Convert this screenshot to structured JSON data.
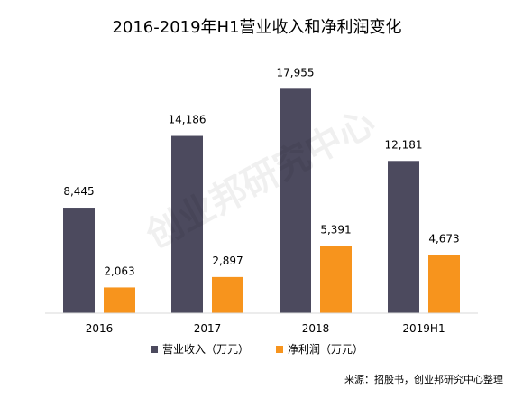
{
  "chart_data": {
    "type": "bar",
    "title": "2016-2019年H1营业收入和净利润变化",
    "categories": [
      "2016",
      "2017",
      "2018",
      "2019H1"
    ],
    "series": [
      {
        "name": "营业收入（万元）",
        "values": [
          8445,
          14186,
          17955,
          12181
        ],
        "labels": [
          "8,445",
          "14,186",
          "17,955",
          "12,181"
        ],
        "color": "#4c4a5e"
      },
      {
        "name": "净利润（万元）",
        "values": [
          2063,
          2897,
          5391,
          4673
        ],
        "labels": [
          "2,063",
          "2,897",
          "5,391",
          "4,673"
        ],
        "color": "#f7941d"
      }
    ],
    "ylim": [
      0,
      20000
    ],
    "grid": false,
    "legend_position": "bottom",
    "source": "来源：招股书，创业邦研究中心整理"
  },
  "watermark": "创业邦研究中心"
}
